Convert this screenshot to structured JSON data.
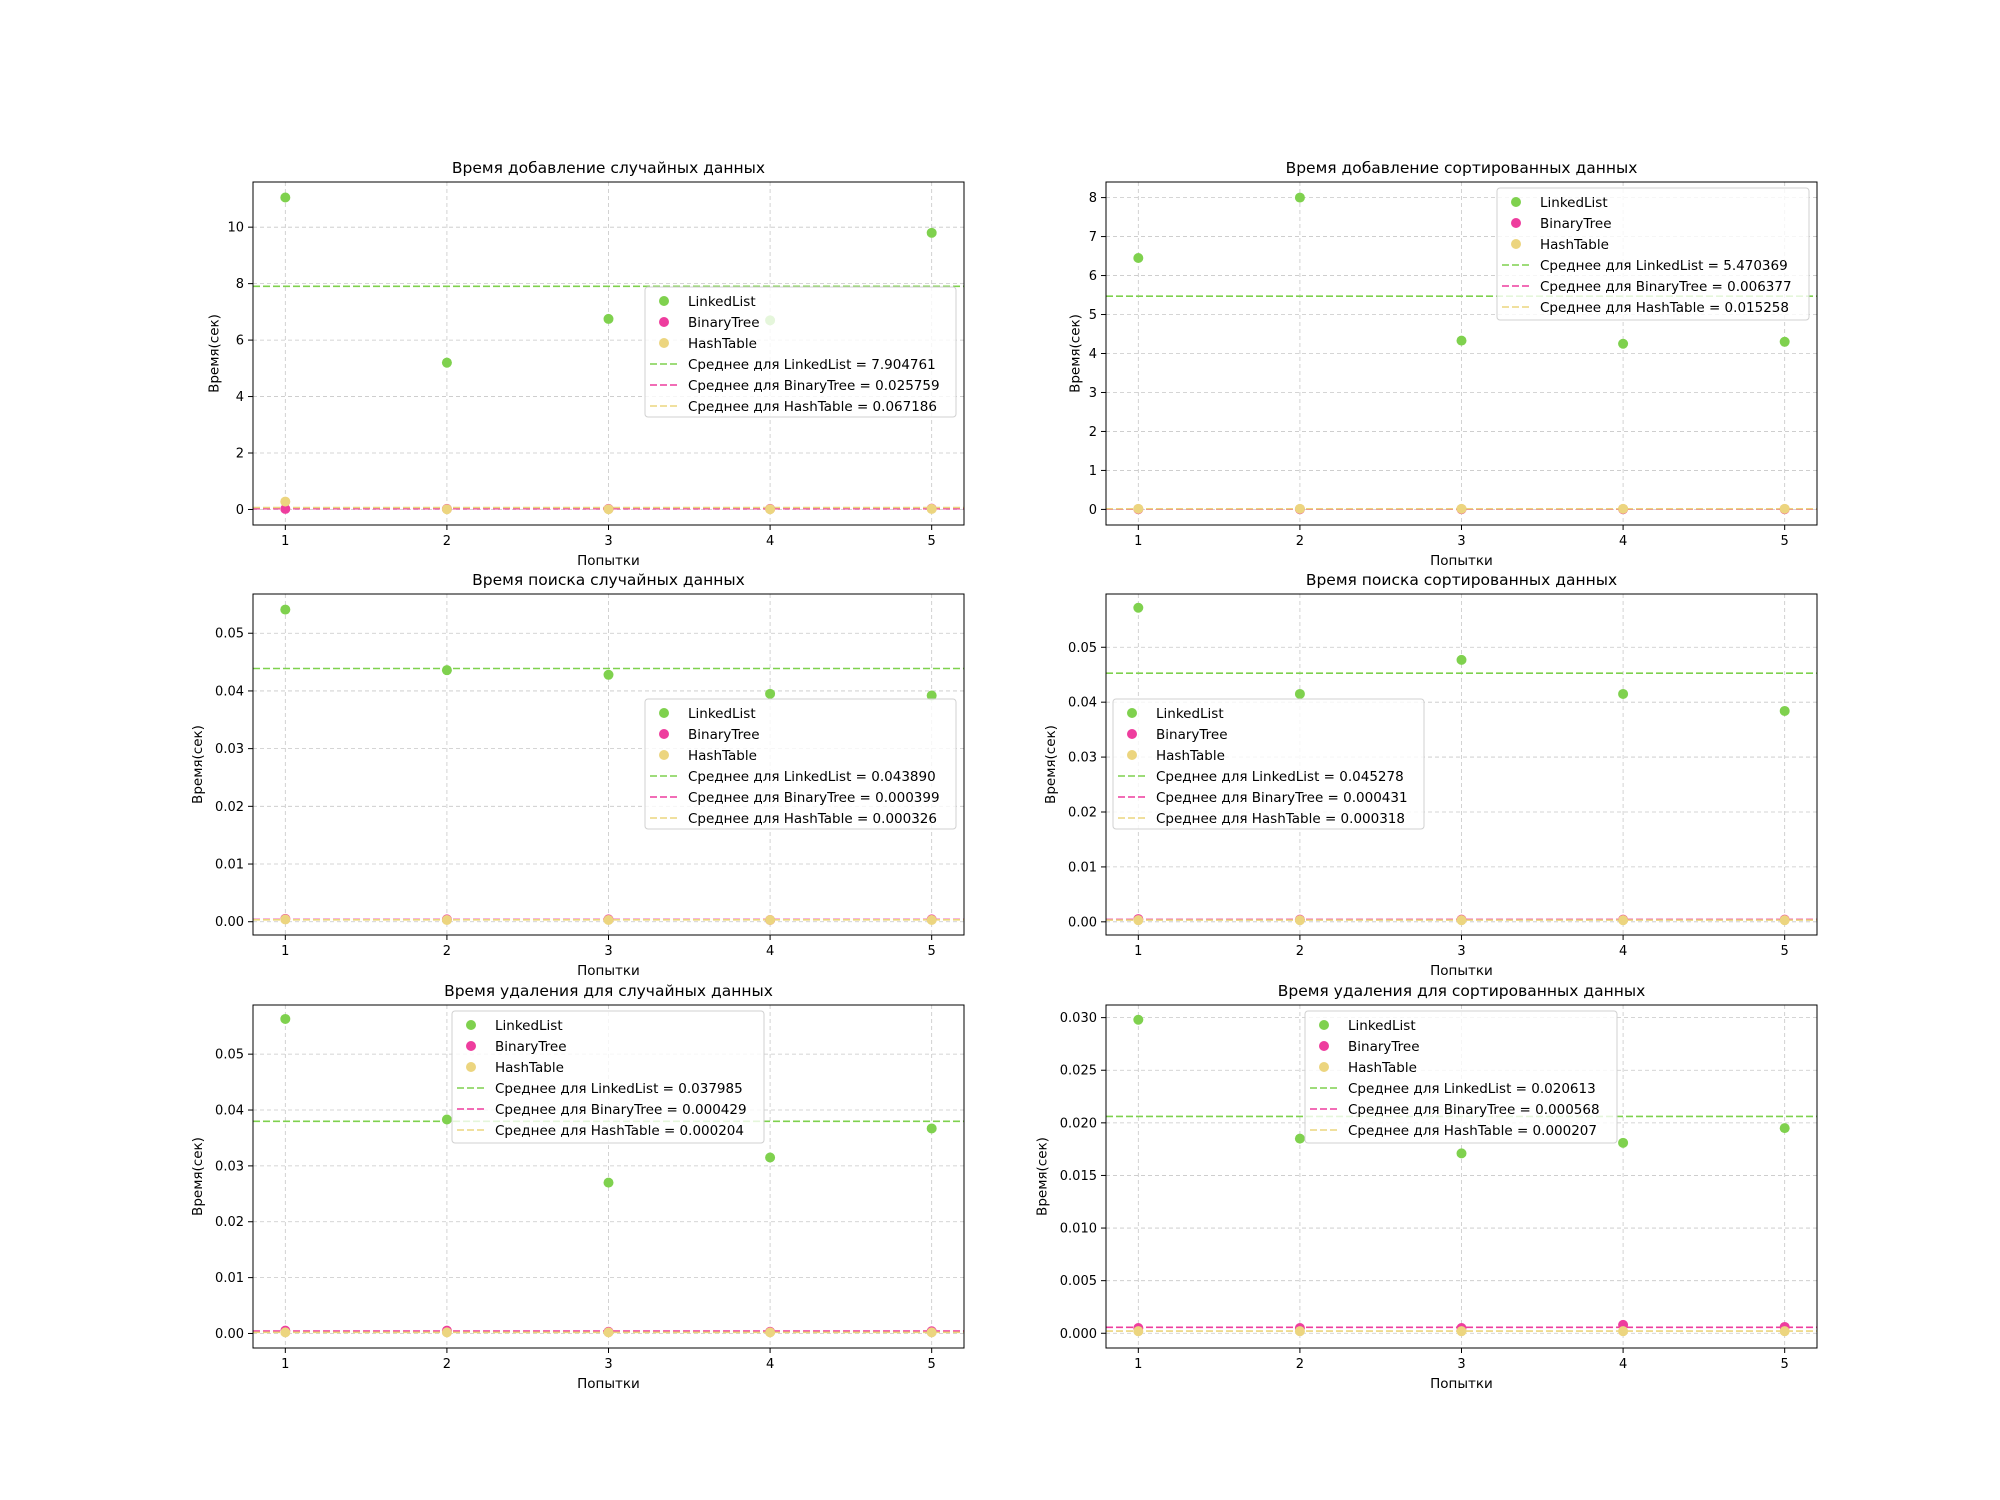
{
  "chart_data": [
    {
      "type": "scatter",
      "title": "Время добавление случайных данных",
      "xlabel": "Попытки",
      "ylabel": "Время(сек)",
      "x": [
        1,
        2,
        3,
        4,
        5
      ],
      "xticks": [
        "1",
        "2",
        "3",
        "4",
        "5"
      ],
      "xlim": [
        0.8,
        5.2
      ],
      "ylim": [
        -0.55,
        11.6
      ],
      "yticks": [
        0,
        2,
        4,
        6,
        8,
        10
      ],
      "ytick_labels": [
        "0",
        "2",
        "4",
        "6",
        "8",
        "10"
      ],
      "grid": true,
      "legend": {
        "placement": "center-right"
      },
      "series": [
        {
          "name": "LinkedList",
          "color": "#7fd14e",
          "values": [
            11.05,
            5.2,
            6.75,
            6.7,
            9.8
          ]
        },
        {
          "name": "BinaryTree",
          "color": "#ee3d9e",
          "values": [
            0.02,
            0.02,
            0.02,
            0.02,
            0.03
          ]
        },
        {
          "name": "HashTable",
          "color": "#ecd57f",
          "values": [
            0.28,
            0.01,
            0.01,
            0.01,
            0.02
          ]
        }
      ],
      "means": [
        {
          "name": "Среднее для LinkedList = 7.904761",
          "color": "#7fd14e",
          "value": 7.904761
        },
        {
          "name": "Среднее для BinaryTree = 0.025759",
          "color": "#ee3d9e",
          "value": 0.025759
        },
        {
          "name": "Среднее для HashTable = 0.067186",
          "color": "#ecd57f",
          "value": 0.067186
        }
      ]
    },
    {
      "type": "scatter",
      "title": "Время добавление сортированных данных",
      "xlabel": "Попытки",
      "ylabel": "Время(сек)",
      "x": [
        1,
        2,
        3,
        4,
        5
      ],
      "xticks": [
        "1",
        "2",
        "3",
        "4",
        "5"
      ],
      "xlim": [
        0.8,
        5.2
      ],
      "ylim": [
        -0.4,
        8.4
      ],
      "yticks": [
        0,
        1,
        2,
        3,
        4,
        5,
        6,
        7,
        8
      ],
      "ytick_labels": [
        "0",
        "1",
        "2",
        "3",
        "4",
        "5",
        "6",
        "7",
        "8"
      ],
      "grid": true,
      "legend": {
        "placement": "upper-right"
      },
      "series": [
        {
          "name": "LinkedList",
          "color": "#7fd14e",
          "values": [
            6.45,
            8.0,
            4.33,
            4.25,
            4.3
          ]
        },
        {
          "name": "BinaryTree",
          "color": "#ee3d9e",
          "values": [
            0.006,
            0.006,
            0.006,
            0.006,
            0.006
          ]
        },
        {
          "name": "HashTable",
          "color": "#ecd57f",
          "values": [
            0.015,
            0.015,
            0.015,
            0.015,
            0.015
          ]
        }
      ],
      "means": [
        {
          "name": "Среднее для LinkedList = 5.470369",
          "color": "#7fd14e",
          "value": 5.470369
        },
        {
          "name": "Среднее для BinaryTree = 0.006377",
          "color": "#ee3d9e",
          "value": 0.006377
        },
        {
          "name": "Среднее для HashTable = 0.015258",
          "color": "#ecd57f",
          "value": 0.015258
        }
      ]
    },
    {
      "type": "scatter",
      "title": "Время поиска случайных данных",
      "xlabel": "Попытки",
      "ylabel": "Время(сек)",
      "x": [
        1,
        2,
        3,
        4,
        5
      ],
      "xticks": [
        "1",
        "2",
        "3",
        "4",
        "5"
      ],
      "xlim": [
        0.8,
        5.2
      ],
      "ylim": [
        -0.0023,
        0.0568
      ],
      "yticks": [
        0,
        0.01,
        0.02,
        0.03,
        0.04,
        0.05
      ],
      "ytick_labels": [
        "0.00",
        "0.01",
        "0.02",
        "0.03",
        "0.04",
        "0.05"
      ],
      "grid": true,
      "legend": {
        "placement": "center-right"
      },
      "series": [
        {
          "name": "LinkedList",
          "color": "#7fd14e",
          "values": [
            0.0541,
            0.0436,
            0.0428,
            0.0395,
            0.0392
          ]
        },
        {
          "name": "BinaryTree",
          "color": "#ee3d9e",
          "values": [
            0.0005,
            0.0004,
            0.0004,
            0.0003,
            0.0004
          ]
        },
        {
          "name": "HashTable",
          "color": "#ecd57f",
          "values": [
            0.0004,
            0.0003,
            0.0003,
            0.0003,
            0.0003
          ]
        }
      ],
      "means": [
        {
          "name": "Среднее для LinkedList = 0.043890",
          "color": "#7fd14e",
          "value": 0.04389
        },
        {
          "name": "Среднее для BinaryTree = 0.000399",
          "color": "#ee3d9e",
          "value": 0.000399
        },
        {
          "name": "Среднее для HashTable = 0.000326",
          "color": "#ecd57f",
          "value": 0.000326
        }
      ]
    },
    {
      "type": "scatter",
      "title": "Время поиска сортированных данных",
      "xlabel": "Попытки",
      "ylabel": "Время(сек)",
      "x": [
        1,
        2,
        3,
        4,
        5
      ],
      "xticks": [
        "1",
        "2",
        "3",
        "4",
        "5"
      ],
      "xlim": [
        0.8,
        5.2
      ],
      "ylim": [
        -0.0024,
        0.0597
      ],
      "yticks": [
        0,
        0.01,
        0.02,
        0.03,
        0.04,
        0.05
      ],
      "ytick_labels": [
        "0.00",
        "0.01",
        "0.02",
        "0.03",
        "0.04",
        "0.05"
      ],
      "grid": true,
      "legend": {
        "placement": "center-left"
      },
      "series": [
        {
          "name": "LinkedList",
          "color": "#7fd14e",
          "values": [
            0.0572,
            0.0415,
            0.0477,
            0.0415,
            0.0384
          ]
        },
        {
          "name": "BinaryTree",
          "color": "#ee3d9e",
          "values": [
            0.0005,
            0.0004,
            0.0004,
            0.0004,
            0.0004
          ]
        },
        {
          "name": "HashTable",
          "color": "#ecd57f",
          "values": [
            0.0003,
            0.0003,
            0.0003,
            0.0003,
            0.0003
          ]
        }
      ],
      "means": [
        {
          "name": "Среднее для LinkedList = 0.045278",
          "color": "#7fd14e",
          "value": 0.045278
        },
        {
          "name": "Среднее для BinaryTree = 0.000431",
          "color": "#ee3d9e",
          "value": 0.000431
        },
        {
          "name": "Среднее для HashTable = 0.000318",
          "color": "#ecd57f",
          "value": 0.000318
        }
      ]
    },
    {
      "type": "scatter",
      "title": "Время удаления для случайных данных",
      "xlabel": "Попытки",
      "ylabel": "Время(сек)",
      "x": [
        1,
        2,
        3,
        4,
        5
      ],
      "xticks": [
        "1",
        "2",
        "3",
        "4",
        "5"
      ],
      "xlim": [
        0.8,
        5.2
      ],
      "ylim": [
        -0.0026,
        0.0588
      ],
      "yticks": [
        0,
        0.01,
        0.02,
        0.03,
        0.04,
        0.05
      ],
      "ytick_labels": [
        "0.00",
        "0.01",
        "0.02",
        "0.03",
        "0.04",
        "0.05"
      ],
      "grid": true,
      "legend": {
        "placement": "upper-center"
      },
      "series": [
        {
          "name": "LinkedList",
          "color": "#7fd14e",
          "values": [
            0.0563,
            0.0383,
            0.027,
            0.0315,
            0.0367
          ]
        },
        {
          "name": "BinaryTree",
          "color": "#ee3d9e",
          "values": [
            0.0005,
            0.0005,
            0.0003,
            0.0003,
            0.0004
          ]
        },
        {
          "name": "HashTable",
          "color": "#ecd57f",
          "values": [
            0.0002,
            0.0002,
            0.0002,
            0.0002,
            0.0002
          ]
        }
      ],
      "means": [
        {
          "name": "Среднее для LinkedList = 0.037985",
          "color": "#7fd14e",
          "value": 0.037985
        },
        {
          "name": "Среднее для BinaryTree = 0.000429",
          "color": "#ee3d9e",
          "value": 0.000429
        },
        {
          "name": "Среднее для HashTable = 0.000204",
          "color": "#ecd57f",
          "value": 0.000204
        }
      ]
    },
    {
      "type": "scatter",
      "title": "Время удаления для сортированных данных",
      "xlabel": "Попытки",
      "ylabel": "Время(сек)",
      "x": [
        1,
        2,
        3,
        4,
        5
      ],
      "xticks": [
        "1",
        "2",
        "3",
        "4",
        "5"
      ],
      "xlim": [
        0.8,
        5.2
      ],
      "ylim": [
        -0.0014,
        0.0312
      ],
      "yticks": [
        0,
        0.005,
        0.01,
        0.015,
        0.02,
        0.025,
        0.03
      ],
      "ytick_labels": [
        "0.000",
        "0.005",
        "0.010",
        "0.015",
        "0.020",
        "0.025",
        "0.030"
      ],
      "grid": true,
      "legend": {
        "placement": "upper-center"
      },
      "series": [
        {
          "name": "LinkedList",
          "color": "#7fd14e",
          "values": [
            0.0298,
            0.0185,
            0.0171,
            0.0181,
            0.0195
          ]
        },
        {
          "name": "BinaryTree",
          "color": "#ee3d9e",
          "values": [
            0.0005,
            0.0005,
            0.0005,
            0.0008,
            0.0006
          ]
        },
        {
          "name": "HashTable",
          "color": "#ecd57f",
          "values": [
            0.0002,
            0.0002,
            0.0002,
            0.0002,
            0.0002
          ]
        }
      ],
      "means": [
        {
          "name": "Среднее для LinkedList = 0.020613",
          "color": "#7fd14e",
          "value": 0.020613
        },
        {
          "name": "Среднее для BinaryTree = 0.000568",
          "color": "#ee3d9e",
          "value": 0.000568
        },
        {
          "name": "Среднее для HashTable = 0.000207",
          "color": "#ecd57f",
          "value": 0.000207
        }
      ]
    }
  ]
}
